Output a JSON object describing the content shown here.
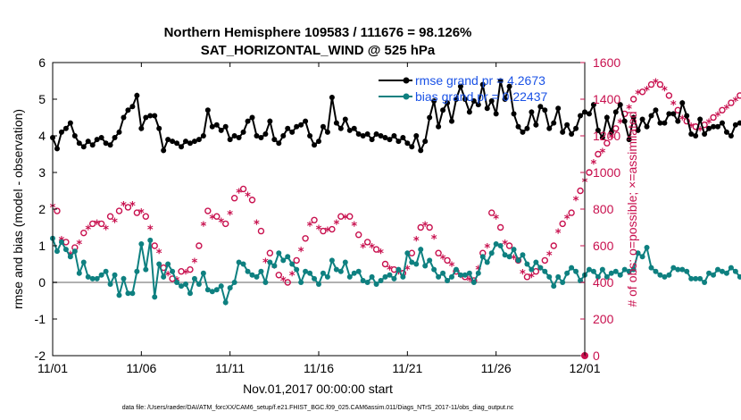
{
  "chart_data": {
    "type": "line",
    "title": "Northern Hemisphere 109583 / 111676 = 98.126%",
    "subtitle": "SAT_HORIZONTAL_WIND @ 525 hPa",
    "xlabel": "Nov.01,2017 00:00:00 start",
    "ylabel": "rmse and bias (model - observation)",
    "ylabel_right": "# of obs: o=possible; ×=assimilated",
    "footer": "data file: /Users/raeder/DAI/ATM_forcXX/CAM6_setup/f.e21.FHIST_BGC.f09_025.CAM6assim.011/Diags_NTrS_2017-11/obs_diag_output.nc",
    "xlim": [
      0,
      30
    ],
    "ylim": [
      -2,
      6
    ],
    "ylim_right": [
      0,
      1600
    ],
    "x_ticks": [
      0,
      5,
      10,
      15,
      20,
      25,
      30
    ],
    "x_tick_labels": [
      "11/01",
      "11/06",
      "11/11",
      "11/16",
      "11/21",
      "11/26",
      "12/01"
    ],
    "y_ticks": [
      "-2",
      "-1",
      "0",
      "1",
      "2",
      "3",
      "4",
      "5",
      "6"
    ],
    "y_ticks_right": [
      "0",
      "200",
      "400",
      "600",
      "800",
      "1000",
      "1200",
      "1400",
      "1600"
    ],
    "x_step_days": 0.25,
    "legend_placement": "top-right",
    "grid": false,
    "series": [
      {
        "name": "rmse grand pr = 4.2673",
        "axis": "left",
        "color": "#000000",
        "values": [
          3.95,
          3.65,
          4.1,
          4.2,
          4.35,
          4.0,
          3.8,
          3.7,
          3.85,
          3.75,
          3.9,
          3.95,
          3.8,
          3.75,
          3.95,
          4.1,
          4.5,
          4.7,
          4.8,
          5.1,
          4.2,
          4.5,
          4.55,
          4.55,
          4.2,
          3.6,
          3.9,
          3.85,
          3.8,
          3.7,
          3.85,
          3.8,
          3.85,
          3.9,
          4.0,
          4.7,
          4.25,
          4.3,
          4.15,
          4.25,
          3.9,
          4.0,
          3.95,
          4.1,
          4.4,
          4.5,
          4.0,
          3.95,
          4.05,
          4.4,
          3.9,
          3.8,
          4.0,
          4.2,
          4.1,
          4.25,
          4.3,
          4.4,
          4.0,
          3.75,
          3.85,
          4.25,
          4.1,
          5.05,
          4.35,
          4.2,
          4.45,
          4.15,
          4.2,
          4.05,
          4.0,
          4.05,
          3.9,
          4.05,
          4.0,
          3.95,
          3.9,
          4.0,
          3.85,
          3.95,
          3.8,
          3.7,
          4.0,
          3.6,
          3.85,
          4.5,
          4.95,
          4.25,
          4.7,
          4.9,
          4.4,
          5.0,
          5.35,
          5.0,
          4.65,
          4.95,
          4.85,
          5.4,
          4.75,
          4.95,
          4.6,
          5.5,
          5.0,
          5.35,
          4.6,
          4.25,
          4.1,
          4.2,
          4.65,
          4.3,
          4.8,
          4.7,
          4.2,
          4.35,
          4.75,
          4.1,
          4.3,
          4.05,
          4.2,
          4.55,
          4.65,
          4.6,
          4.85,
          4.15,
          3.95,
          4.5,
          4.1,
          4.65,
          4.85,
          4.4,
          3.9,
          4.5,
          4.15,
          4.45,
          4.25,
          4.55,
          4.7,
          4.35,
          4.35,
          4.6,
          4.6,
          4.4,
          4.9,
          4.55,
          4.05,
          4.0,
          4.45,
          4.05,
          4.2,
          4.25,
          4.25,
          4.35,
          4.1,
          4.0,
          4.3,
          4.35,
          4.35,
          4.3,
          4.3,
          4.35,
          4.35
        ]
      },
      {
        "name": "bias grand pr = 0.22437",
        "axis": "left",
        "color": "#0e8080",
        "values": [
          1.2,
          0.85,
          1.1,
          0.9,
          0.7,
          0.85,
          0.25,
          0.55,
          0.15,
          0.1,
          0.1,
          0.2,
          0.3,
          -0.05,
          0.2,
          -0.35,
          0.1,
          -0.3,
          -0.3,
          0.3,
          1.05,
          0.35,
          1.15,
          -0.4,
          0.5,
          0.15,
          0.5,
          0.3,
          0.0,
          -0.1,
          -0.05,
          -0.3,
          0.1,
          -0.05,
          0.25,
          -0.2,
          -0.25,
          -0.2,
          -0.1,
          -0.55,
          -0.15,
          0.0,
          0.55,
          0.5,
          0.3,
          0.2,
          0.15,
          0.3,
          0.0,
          0.55,
          0.45,
          0.8,
          0.6,
          0.7,
          0.5,
          0.35,
          0.0,
          0.3,
          0.25,
          0.1,
          -0.05,
          0.25,
          0.15,
          0.6,
          0.35,
          0.3,
          0.55,
          0.15,
          0.25,
          0.3,
          0.05,
          0.0,
          0.15,
          -0.05,
          0.05,
          0.15,
          0.2,
          0.1,
          0.35,
          0.15,
          0.8,
          0.55,
          0.5,
          0.9,
          0.45,
          0.6,
          0.35,
          0.15,
          0.25,
          0.05,
          0.15,
          0.35,
          0.2,
          0.2,
          0.25,
          0.0,
          0.25,
          0.7,
          0.55,
          0.8,
          1.05,
          1.0,
          0.75,
          0.7,
          0.9,
          0.6,
          0.75,
          0.5,
          0.35,
          0.55,
          0.4,
          0.3,
          0.15,
          -0.1,
          0.15,
          0.0,
          0.25,
          0.4,
          0.3,
          0.05,
          0.2,
          0.35,
          0.3,
          0.15,
          0.35,
          0.15,
          0.25,
          0.3,
          0.2,
          0.35,
          0.3,
          0.35,
          0.8,
          0.7,
          0.95,
          0.4,
          0.3,
          0.2,
          0.15,
          0.2,
          0.4,
          0.35,
          0.35,
          0.3,
          0.1,
          0.1,
          0.1,
          0.0,
          0.25,
          0.2,
          0.35,
          0.3,
          0.25,
          0.4,
          0.3,
          0.15,
          0.3,
          0.15,
          -0.1,
          0.1,
          0.0,
          0.1,
          0.25
        ]
      },
      {
        "name": "possible",
        "axis": "right",
        "marker": "o",
        "color": "#c8104e",
        "values": [
          820,
          790,
          640,
          620,
          560,
          590,
          620,
          670,
          700,
          720,
          730,
          720,
          700,
          760,
          740,
          790,
          830,
          810,
          830,
          780,
          790,
          760,
          700,
          600,
          570,
          480,
          450,
          420,
          420,
          460,
          460,
          470,
          520,
          600,
          720,
          790,
          760,
          760,
          740,
          720,
          780,
          860,
          900,
          910,
          880,
          850,
          730,
          680,
          520,
          560,
          490,
          440,
          420,
          400,
          450,
          520,
          580,
          640,
          720,
          740,
          700,
          680,
          690,
          690,
          730,
          760,
          760,
          760,
          720,
          660,
          600,
          620,
          600,
          580,
          570,
          500,
          480,
          470,
          460,
          450,
          480,
          560,
          640,
          700,
          720,
          700,
          650,
          560,
          540,
          520,
          500,
          460,
          440,
          430,
          420,
          410,
          480,
          560,
          600,
          780,
          760,
          700,
          620,
          600,
          540,
          520,
          460,
          430,
          440,
          460,
          480,
          520,
          560,
          600,
          680,
          720,
          760,
          780,
          860,
          900,
          960,
          1000,
          1060,
          1100,
          1120,
          1160,
          1200,
          1240,
          1280,
          1320,
          1360,
          1400,
          1440,
          1440,
          1460,
          1480,
          1500,
          1480,
          1460,
          1420,
          1380,
          1340,
          1300,
          1280,
          1260,
          1250,
          1240,
          1260,
          1280,
          1300,
          1320,
          1340,
          1360,
          1380,
          1400,
          1420,
          1440,
          1460,
          1480,
          1500,
          1520,
          1520,
          1400
        ]
      },
      {
        "name": "assimilated",
        "axis": "right",
        "marker": "*",
        "color": "#c8104e",
        "values": [
          810,
          780,
          630,
          610,
          550,
          580,
          610,
          660,
          690,
          710,
          720,
          710,
          690,
          750,
          730,
          780,
          820,
          800,
          820,
          770,
          780,
          750,
          690,
          590,
          560,
          470,
          440,
          410,
          410,
          450,
          450,
          460,
          510,
          590,
          710,
          780,
          750,
          750,
          730,
          710,
          770,
          850,
          890,
          900,
          870,
          840,
          720,
          670,
          510,
          550,
          480,
          430,
          410,
          390,
          440,
          510,
          570,
          630,
          710,
          730,
          690,
          670,
          680,
          680,
          720,
          750,
          750,
          750,
          710,
          650,
          590,
          610,
          590,
          570,
          560,
          490,
          470,
          460,
          450,
          440,
          470,
          550,
          630,
          690,
          710,
          690,
          640,
          550,
          530,
          510,
          490,
          450,
          430,
          420,
          410,
          400,
          470,
          550,
          590,
          770,
          750,
          690,
          610,
          590,
          530,
          510,
          450,
          420,
          430,
          450,
          470,
          510,
          550,
          590,
          670,
          710,
          750,
          770,
          850,
          890,
          950,
          990,
          1050,
          1090,
          1110,
          1150,
          1190,
          1230,
          1270,
          1310,
          1350,
          1390,
          1430,
          1430,
          1450,
          1470,
          1490,
          1470,
          1450,
          1410,
          1370,
          1330,
          1290,
          1270,
          1250,
          1240,
          1230,
          1250,
          1270,
          1290,
          1310,
          1330,
          1350,
          1370,
          1390,
          1410,
          1430,
          1450,
          1470,
          1490,
          1510,
          1510,
          1390
        ]
      }
    ]
  }
}
